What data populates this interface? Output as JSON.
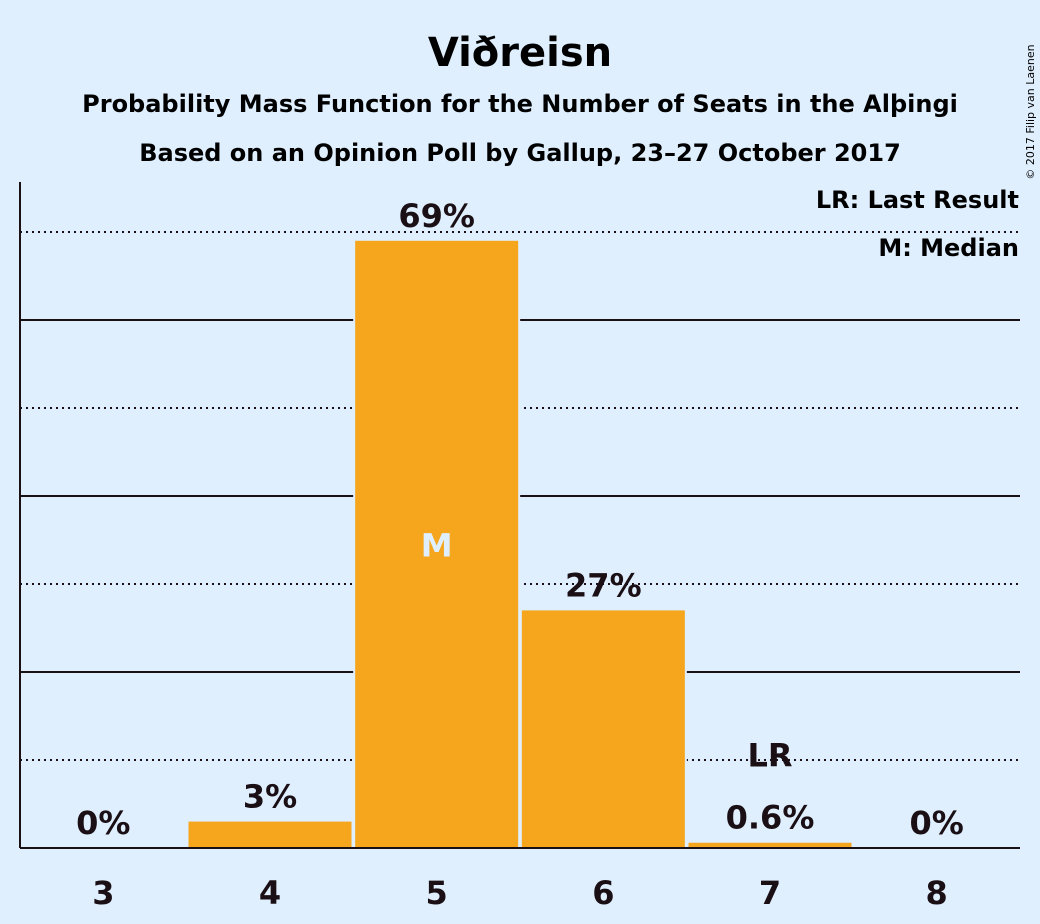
{
  "title": "Viðreisn",
  "subtitle_1": "Probability Mass Function for the Number of Seats in the Alþingi",
  "subtitle_2": "Based on an Opinion Poll by Gallup, 23–27 October 2017",
  "legend": {
    "last_result": "LR: Last Result",
    "median": "M: Median"
  },
  "copyright": "© 2017 Filip van Laenen",
  "colors": {
    "background": "#dfeffe",
    "bar": "#f5a61d",
    "text": "#1a0f14"
  },
  "chart_data": {
    "type": "bar",
    "categories": [
      "3",
      "4",
      "5",
      "6",
      "7",
      "8"
    ],
    "values": [
      0,
      3,
      69,
      27,
      0.6,
      0
    ],
    "value_labels": [
      "0%",
      "3%",
      "69%",
      "27%",
      "0.6%",
      "0%"
    ],
    "median_category": "5",
    "median_marker": "M",
    "last_result_category": "7",
    "last_result_marker": "LR",
    "ylim": [
      0,
      76
    ],
    "gridlines": {
      "solid": [
        20,
        40,
        60
      ],
      "dotted": [
        10,
        30,
        50,
        70
      ]
    },
    "legend_position": "top-right"
  }
}
